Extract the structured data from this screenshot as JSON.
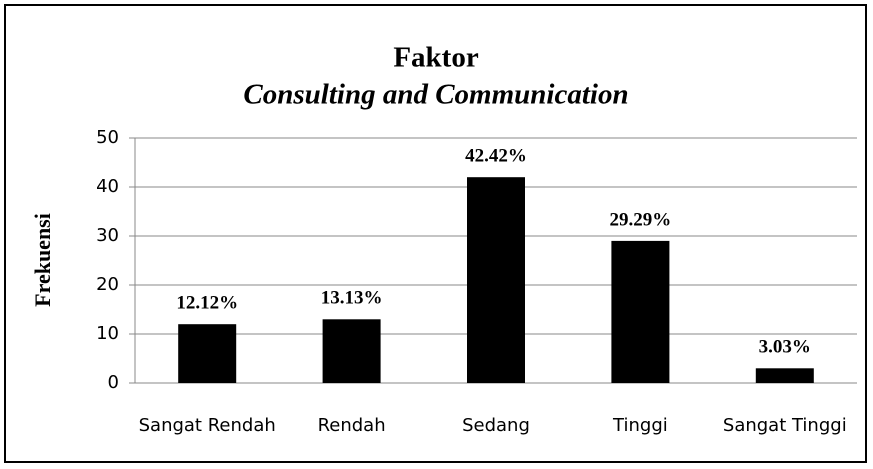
{
  "chart_data": {
    "type": "bar",
    "title": "Faktor",
    "subtitle": "Consulting and Communication",
    "ylabel": "Frekuensi",
    "categories": [
      "Sangat Rendah",
      "Rendah",
      "Sedang",
      "Tinggi",
      "Sangat Tinggi"
    ],
    "values": [
      12,
      13,
      42,
      29,
      3
    ],
    "annotations": [
      "12.12%",
      "13.13%",
      "42.42%",
      "29.29%",
      "3.03%"
    ],
    "color": "#000000",
    "ylim": [
      0,
      50
    ],
    "yticks": [
      0,
      10,
      20,
      30,
      40,
      50
    ],
    "grid": true
  }
}
